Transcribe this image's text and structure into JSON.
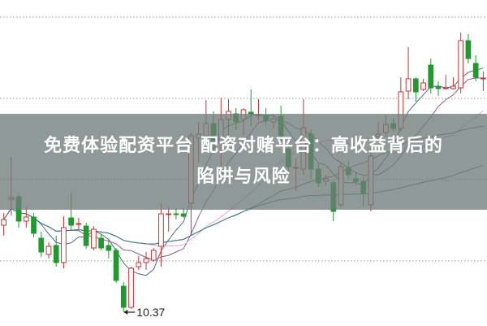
{
  "banner": {
    "line1": "免费体验配资平台 配资对赌平台：高收益背后的",
    "line2": "陷阱与风险"
  },
  "chart_data": {
    "type": "candlestick",
    "ylim": [
      10.2,
      14.21
    ],
    "grid": true,
    "grid_style": "dotted horizontal",
    "gridlines": [
      11,
      12,
      13,
      14
    ],
    "annotation": {
      "label": "10.37",
      "value": 10.37,
      "candle_index": 16
    },
    "colors": {
      "up": "#d03030",
      "down": "#1f9a2e",
      "grid": "#9a9a9a",
      "banner": "#707c7a"
    },
    "ma_colors": [
      "#4a6d8c",
      "#8e5c8e",
      "#e9a3e6",
      "#4e7d5a",
      "#3c7f80"
    ],
    "candles": [
      [
        11.44,
        11.51,
        11.59,
        11.31
      ],
      [
        11.76,
        11.78,
        12.28,
        11.56
      ],
      [
        11.79,
        11.49,
        11.83,
        11.41
      ],
      [
        11.49,
        11.54,
        11.66,
        11.41
      ],
      [
        11.54,
        11.34,
        11.59,
        11.29
      ],
      [
        11.28,
        11.11,
        11.36,
        11.05
      ],
      [
        11.08,
        11.18,
        11.23,
        11.03
      ],
      [
        11.19,
        10.98,
        11.31,
        10.93
      ],
      [
        10.98,
        11.41,
        11.55,
        10.91
      ],
      [
        11.53,
        11.44,
        11.84,
        11.38
      ],
      [
        11.45,
        11.46,
        11.53,
        11.39
      ],
      [
        11.43,
        11.19,
        11.47,
        11.15
      ],
      [
        11.16,
        11.39,
        11.43,
        11.13
      ],
      [
        11.28,
        11.16,
        11.33,
        11.13
      ],
      [
        11.19,
        11.13,
        11.27,
        11.03
      ],
      [
        11.13,
        10.76,
        11.16,
        10.73
      ],
      [
        10.69,
        10.43,
        10.74,
        10.37
      ],
      [
        10.43,
        10.91,
        10.93,
        10.41
      ],
      [
        10.93,
        10.98,
        11.06,
        10.89
      ],
      [
        10.98,
        11.03,
        11.11,
        10.89
      ],
      [
        11.01,
        11.13,
        11.16,
        10.99
      ],
      [
        11.18,
        11.58,
        11.71,
        10.93
      ],
      [
        11.57,
        11.58,
        11.66,
        11.36
      ],
      [
        11.58,
        11.57,
        11.65,
        11.51
      ],
      [
        11.58,
        11.55,
        11.65,
        11.53
      ],
      [
        11.71,
        12.54,
        12.58,
        11.31
      ],
      [
        12.51,
        12.56,
        12.71,
        12.21
      ],
      [
        12.54,
        12.69,
        12.98,
        12.41
      ],
      [
        12.69,
        12.48,
        12.84,
        12.36
      ],
      [
        12.46,
        12.74,
        13.01,
        12.16
      ],
      [
        12.74,
        12.84,
        12.99,
        12.49
      ],
      [
        12.81,
        12.71,
        12.88,
        12.61
      ],
      [
        12.74,
        12.86,
        12.88,
        12.54
      ],
      [
        12.83,
        12.81,
        13.11,
        12.66
      ],
      [
        12.79,
        12.8,
        12.99,
        12.73
      ],
      [
        12.79,
        12.73,
        12.88,
        12.66
      ],
      [
        12.71,
        12.75,
        12.78,
        12.63
      ],
      [
        12.78,
        12.54,
        12.91,
        12.41
      ],
      [
        12.38,
        12.16,
        12.46,
        12.09
      ],
      [
        12.14,
        12.15,
        12.26,
        11.86
      ],
      [
        12.13,
        12.64,
        12.99,
        12.06
      ],
      [
        12.56,
        12.13,
        12.61,
        12.01
      ],
      [
        12.13,
        11.96,
        12.21,
        11.91
      ],
      [
        11.98,
        12.01,
        12.06,
        11.93
      ],
      [
        11.96,
        11.61,
        11.99,
        11.49
      ],
      [
        11.69,
        12.16,
        12.21,
        11.66
      ],
      [
        12.14,
        12.06,
        12.23,
        12.01
      ],
      [
        12.01,
        11.98,
        12.09,
        11.93
      ],
      [
        11.98,
        11.83,
        12.03,
        11.66
      ],
      [
        11.69,
        12.29,
        12.39,
        11.61
      ],
      [
        12.53,
        12.56,
        12.71,
        12.46
      ],
      [
        12.58,
        12.68,
        12.79,
        12.53
      ],
      [
        12.69,
        12.63,
        12.76,
        12.59
      ],
      [
        12.63,
        13.08,
        13.26,
        12.59
      ],
      [
        13.09,
        13.24,
        13.63,
        12.99
      ],
      [
        13.24,
        13.08,
        13.26,
        12.96
      ],
      [
        13.11,
        13.19,
        13.24,
        13.09
      ],
      [
        13.41,
        13.13,
        13.49,
        13.06
      ],
      [
        13.14,
        13.12,
        13.21,
        13.03
      ],
      [
        13.13,
        13.13,
        13.29,
        13.11
      ],
      [
        13.12,
        13.15,
        13.26,
        13.11
      ],
      [
        13.13,
        13.71,
        13.81,
        13.06
      ],
      [
        13.71,
        13.49,
        13.79,
        13.43
      ],
      [
        13.43,
        13.26,
        13.53,
        13.21
      ],
      [
        13.24,
        13.25,
        13.33,
        13.09
      ]
    ]
  }
}
